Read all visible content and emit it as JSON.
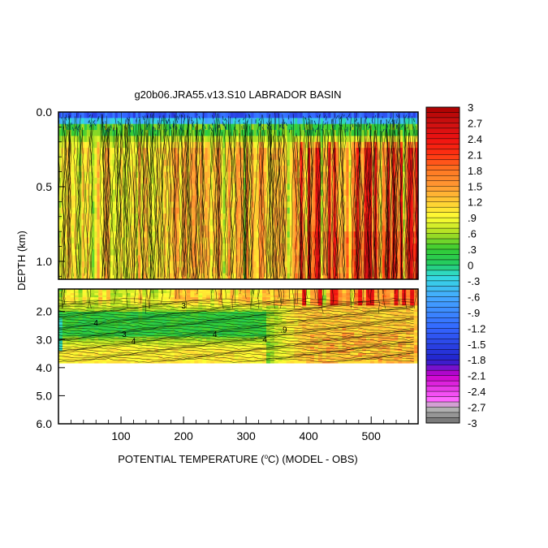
{
  "chart_data": {
    "type": "heatmap",
    "title": "g20b06.JRA55.v13.S10 LABRADOR BASIN",
    "xlabel": "POTENTIAL TEMPERATURE (",
    "xlabel_sup": "o",
    "xlabel_tail": "C) (MODEL - OBS)",
    "ylabel": "DEPTH (km)",
    "xlim": [
      0,
      575
    ],
    "x_ticks": [
      "100",
      "200",
      "300",
      "400",
      "500"
    ],
    "x_tick_values": [
      100,
      200,
      300,
      400,
      500
    ],
    "upper_panel": {
      "ylim": [
        0.0,
        1.12
      ],
      "y_ticks": [
        "0.0",
        "0.5",
        "1.0"
      ],
      "y_tick_values": [
        0.0,
        0.5,
        1.0
      ]
    },
    "lower_panel": {
      "ylim": [
        1.2,
        6.0
      ],
      "y_ticks": [
        "2.0",
        "3.0",
        "4.0",
        "5.0",
        "6.0"
      ],
      "y_tick_values": [
        2.0,
        3.0,
        4.0,
        5.0,
        6.0
      ],
      "data_bottom": 3.85
    },
    "contour_labels": [
      {
        "text": "4",
        "x": 60,
        "depth": 2.5
      },
      {
        "text": "3",
        "x": 105,
        "depth": 2.9
      },
      {
        "text": "4",
        "x": 120,
        "depth": 3.15
      },
      {
        "text": "3",
        "x": 200,
        "depth": 1.9
      },
      {
        "text": "4",
        "x": 250,
        "depth": 2.9
      },
      {
        "text": "4",
        "x": 330,
        "depth": 3.1
      },
      {
        "text": ".9",
        "x": 360,
        "depth": 2.75
      }
    ],
    "colorbar": {
      "min": -3,
      "max": 3,
      "labels": [
        "3",
        "2.7",
        "2.4",
        "2.1",
        "1.8",
        "1.5",
        "1.2",
        ".9",
        ".6",
        ".3",
        "0",
        "-.3",
        "-.6",
        "-.9",
        "-1.2",
        "-1.5",
        "-1.8",
        "-2.1",
        "-2.4",
        "-2.7",
        "-3"
      ],
      "label_values": [
        3,
        2.7,
        2.4,
        2.1,
        1.8,
        1.5,
        1.2,
        0.9,
        0.6,
        0.3,
        0,
        -0.3,
        -0.6,
        -0.9,
        -1.2,
        -1.5,
        -1.8,
        -2.1,
        -2.4,
        -2.7,
        -3
      ],
      "stops": [
        {
          "v": -3.0,
          "c": "#6e6e6e"
        },
        {
          "v": -2.7,
          "c": "#bdbdbd"
        },
        {
          "v": -2.55,
          "c": "#ff66ff"
        },
        {
          "v": -2.1,
          "c": "#cc00cc"
        },
        {
          "v": -1.8,
          "c": "#2222cc"
        },
        {
          "v": -1.2,
          "c": "#3366ff"
        },
        {
          "v": -0.6,
          "c": "#44aaff"
        },
        {
          "v": -0.2,
          "c": "#33dddd"
        },
        {
          "v": 0.0,
          "c": "#22cc66"
        },
        {
          "v": 0.3,
          "c": "#33cc33"
        },
        {
          "v": 0.6,
          "c": "#aadd22"
        },
        {
          "v": 0.9,
          "c": "#ffff33"
        },
        {
          "v": 1.2,
          "c": "#ffcc33"
        },
        {
          "v": 1.5,
          "c": "#ff9933"
        },
        {
          "v": 1.8,
          "c": "#ff7722"
        },
        {
          "v": 2.1,
          "c": "#ff3311"
        },
        {
          "v": 2.4,
          "c": "#ee1111"
        },
        {
          "v": 2.7,
          "c": "#cc1111"
        },
        {
          "v": 3.0,
          "c": "#aa0000"
        }
      ]
    }
  }
}
